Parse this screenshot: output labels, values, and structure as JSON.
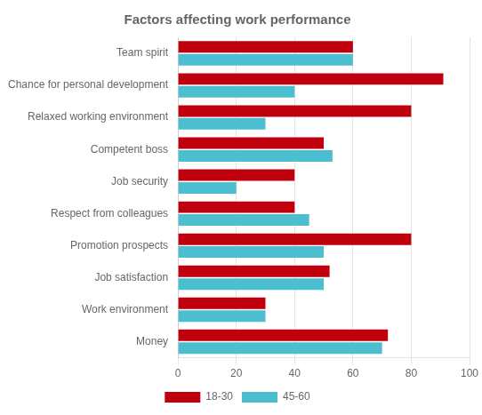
{
  "chart_data": {
    "type": "bar",
    "orientation": "horizontal",
    "title": "Factors affecting work performance",
    "categories": [
      "Team spirit",
      "Chance for personal development",
      "Relaxed working environment",
      "Competent boss",
      "Job security",
      "Respect from colleagues",
      "Promotion prospects",
      "Job satisfaction",
      "Work environment",
      "Money"
    ],
    "series": [
      {
        "name": "18-30",
        "color": "#C0000C",
        "values": [
          60,
          91,
          80,
          50,
          40,
          40,
          80,
          52,
          30,
          72
        ]
      },
      {
        "name": "45-60",
        "color": "#4BBFCF",
        "values": [
          60,
          40,
          30,
          53,
          20,
          45,
          50,
          50,
          30,
          70
        ]
      }
    ],
    "xlim": [
      0,
      100
    ],
    "xticks": [
      0,
      20,
      40,
      60,
      80,
      100
    ],
    "grid": true,
    "legend": "bottom"
  }
}
